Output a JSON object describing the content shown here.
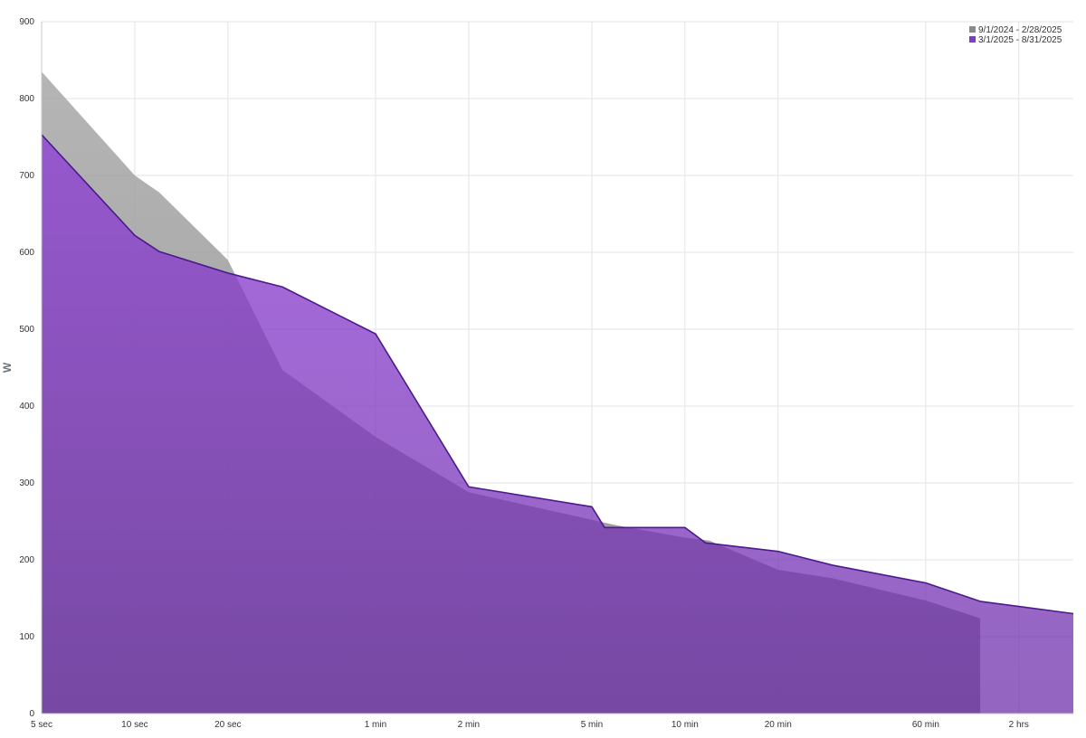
{
  "chart_data": {
    "type": "area",
    "ylabel": "W",
    "ylim": [
      0,
      900
    ],
    "yticks": [
      0,
      100,
      200,
      300,
      400,
      500,
      600,
      700,
      800,
      900
    ],
    "x_scale": "log",
    "x_unit": "seconds",
    "xlim": [
      5,
      10800
    ],
    "xticks": [
      {
        "value": 5,
        "label": "5 sec"
      },
      {
        "value": 10,
        "label": "10 sec"
      },
      {
        "value": 20,
        "label": "20 sec"
      },
      {
        "value": 60,
        "label": "1 min"
      },
      {
        "value": 120,
        "label": "2 min"
      },
      {
        "value": 300,
        "label": "5 min"
      },
      {
        "value": 600,
        "label": "10 min"
      },
      {
        "value": 1200,
        "label": "20 min"
      },
      {
        "value": 3600,
        "label": "60 min"
      },
      {
        "value": 7200,
        "label": "2 hrs"
      }
    ],
    "grid": true,
    "legend_position": "top-right",
    "series": [
      {
        "name": "9/1/2024 - 2/28/2025",
        "color": "#8a8a8a",
        "x": [
          5,
          10,
          12,
          20,
          30,
          60,
          120,
          300,
          360,
          600,
          720,
          1200,
          1800,
          3600,
          5400
        ],
        "y": [
          835,
          700,
          678,
          590,
          447,
          360,
          288,
          252,
          245,
          229,
          225,
          187,
          176,
          147,
          124
        ]
      },
      {
        "name": "3/1/2025 - 8/31/2025",
        "color": "#7d3fc0",
        "x": [
          5,
          10,
          12,
          20,
          30,
          60,
          120,
          300,
          330,
          600,
          700,
          1200,
          1800,
          3600,
          5400,
          10800
        ],
        "y": [
          753,
          622,
          601,
          573,
          555,
          494,
          295,
          269,
          242,
          242,
          222,
          211,
          193,
          170,
          146,
          130
        ]
      }
    ]
  }
}
